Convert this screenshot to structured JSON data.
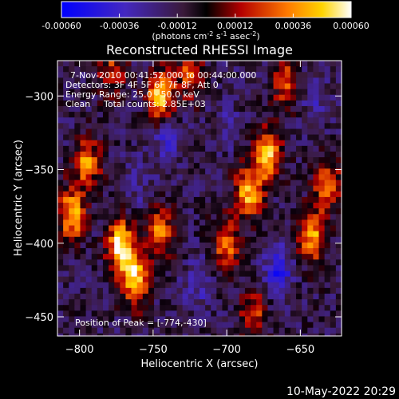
{
  "chart_data": {
    "type": "heatmap",
    "title": "Reconstructed RHESSI Image",
    "xlabel": "Heliocentric X (arcsec)",
    "ylabel": "Heliocentric Y (arcsec)",
    "xlim": [
      -815,
      -622
    ],
    "ylim": [
      -463,
      -276
    ],
    "x_ticks": [
      -800,
      -750,
      -700,
      -650
    ],
    "y_ticks": [
      -450,
      -400,
      -350,
      -300
    ],
    "colorbar": {
      "ticks": [
        -0.0006,
        -0.00036,
        -0.00012,
        0.00012,
        0.00036,
        0.0006
      ],
      "tick_labels": [
        "-0.00060",
        "-0.00036",
        "-0.00012",
        "0.00012",
        "0.00036",
        "0.00060"
      ],
      "units": "(photons cm",
      "units_sup1": "-2",
      "units_mid": " s",
      "units_sup2": "-1",
      "units_mid2": " asec",
      "units_sup3": "-2",
      "units_end": ")"
    },
    "peak": {
      "x": -774,
      "y": -430
    },
    "annotations": {
      "time": "7-Nov-2010 00:41:52.000 to 00:44:00.000",
      "detectors": "Detectors: 3F 4F 5F 6F 7F 8F, Att 0",
      "energy": "Energy Range: 25.0 - 50.0 keV",
      "method": "Clean",
      "counts": "Total counts: 2.85E+03",
      "peak": "Position of Peak = [-774,-430]"
    },
    "bright_sources": [
      {
        "x": -772,
        "y": -402,
        "value": 0.00058
      },
      {
        "x": -762,
        "y": -425,
        "value": 0.0005
      },
      {
        "x": -745,
        "y": -300,
        "value": 0.00052
      },
      {
        "x": -795,
        "y": -345,
        "value": 0.00035
      },
      {
        "x": -805,
        "y": -380,
        "value": 0.00045
      },
      {
        "x": -745,
        "y": -392,
        "value": 0.00035
      },
      {
        "x": -700,
        "y": -400,
        "value": 0.0003
      },
      {
        "x": -685,
        "y": -365,
        "value": 0.00045
      },
      {
        "x": -672,
        "y": -340,
        "value": 0.00048
      },
      {
        "x": -642,
        "y": -395,
        "value": 0.0004
      },
      {
        "x": -632,
        "y": -360,
        "value": 0.00035
      },
      {
        "x": -682,
        "y": -448,
        "value": 0.00022
      },
      {
        "x": -725,
        "y": -285,
        "value": 0.00025
      },
      {
        "x": -660,
        "y": -290,
        "value": 0.00025
      },
      {
        "x": -778,
        "y": -285,
        "value": 0.0002
      }
    ],
    "dark_sources": [
      {
        "x": -740,
        "y": -330,
        "value": -0.00035
      },
      {
        "x": -665,
        "y": -420,
        "value": -0.00045
      },
      {
        "x": -720,
        "y": -430,
        "value": -0.0003
      },
      {
        "x": -640,
        "y": -300,
        "value": -0.0003
      },
      {
        "x": -760,
        "y": -360,
        "value": -0.00025
      },
      {
        "x": -700,
        "y": -320,
        "value": -0.00022
      }
    ]
  },
  "footer": {
    "timestamp": "10-May-2022 20:29"
  }
}
